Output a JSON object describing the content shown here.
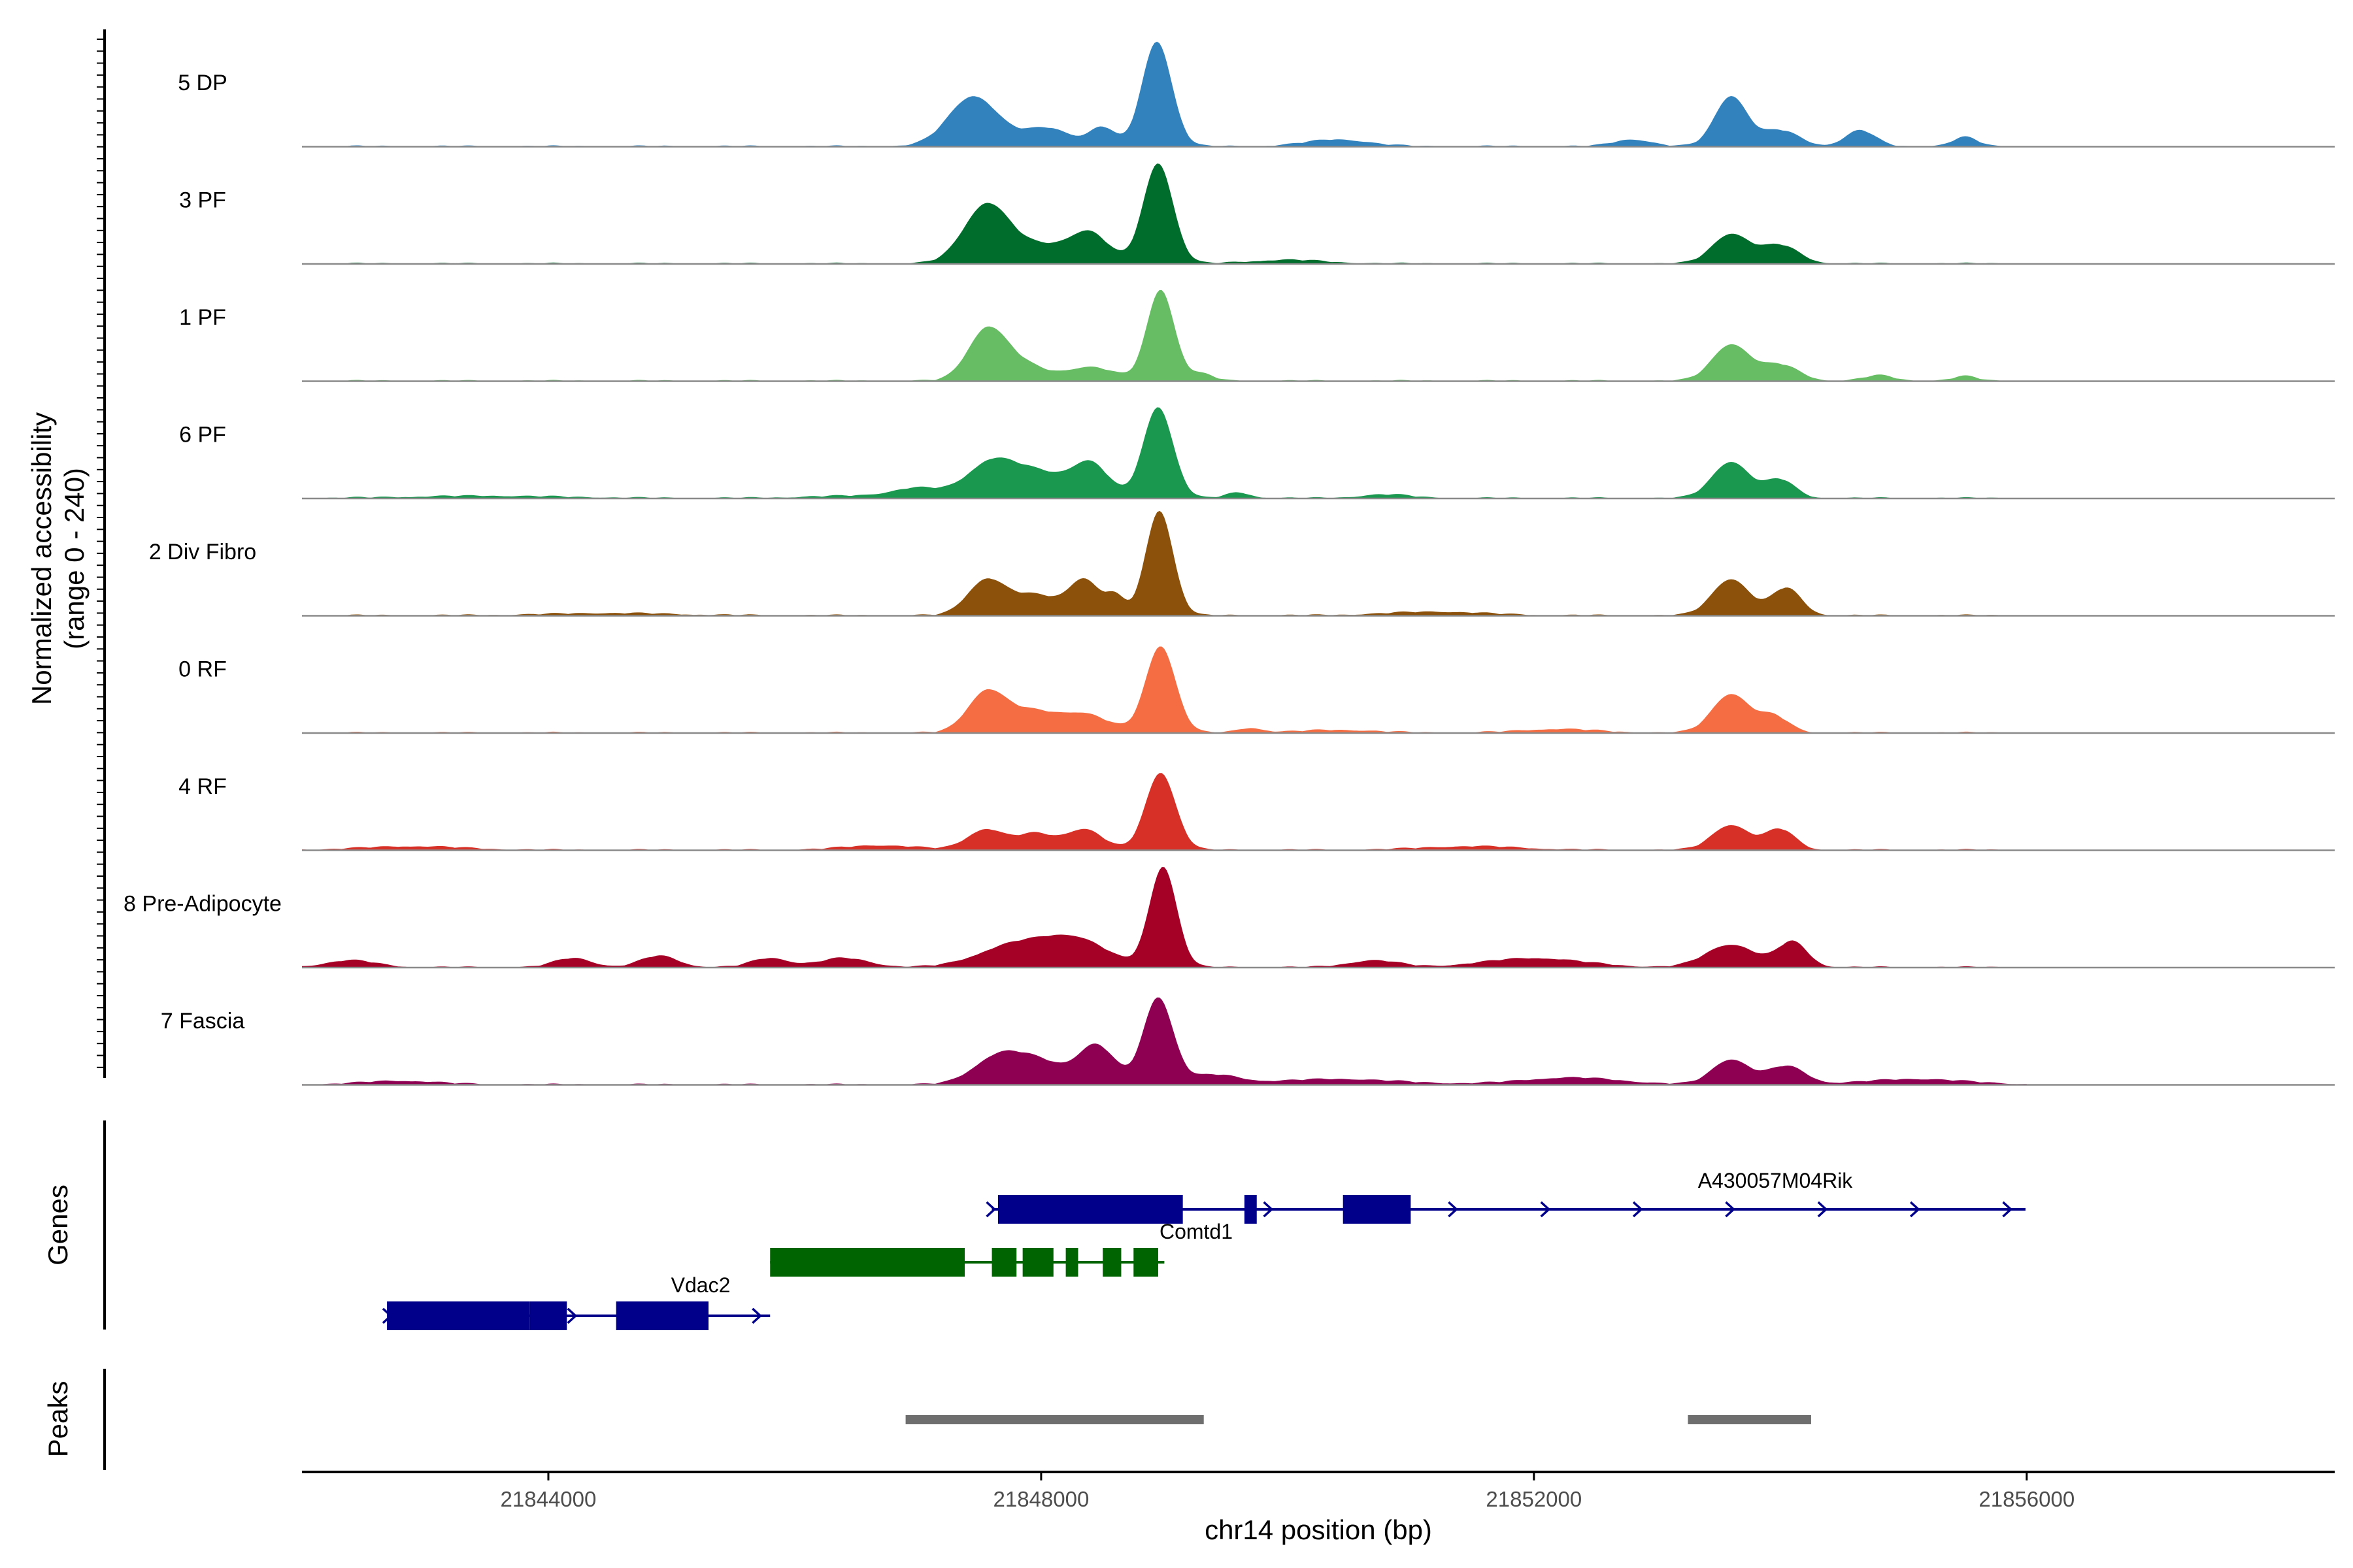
{
  "chart_data": {
    "type": "area",
    "y_axis": {
      "title_line1": "Normalized accessibility",
      "title_line2": "(range 0 - 240)",
      "range": [
        0,
        240
      ]
    },
    "x_axis": {
      "title": "chr14 position (bp)",
      "range": [
        21842000,
        21858500
      ],
      "ticks": [
        21844000,
        21848000,
        21852000,
        21856000
      ],
      "tick_labels": [
        "21844000",
        "21848000",
        "21852000",
        "21856000"
      ]
    },
    "tracks": [
      {
        "name": "5 DP",
        "color": "#3182bd"
      },
      {
        "name": "3 PF",
        "color": "#006d2c"
      },
      {
        "name": "1 PF",
        "color": "#66bd63"
      },
      {
        "name": "6 PF",
        "color": "#1a9850"
      },
      {
        "name": "2 Div Fibro",
        "color": "#8c510a"
      },
      {
        "name": "0 RF",
        "color": "#f46d43"
      },
      {
        "name": "4 RF",
        "color": "#d73027"
      },
      {
        "name": "8 Pre-Adipocyte",
        "color": "#a50026"
      },
      {
        "name": "7 Fascia",
        "color": "#8e0152"
      }
    ],
    "peak_profiles": [
      {
        "track": "5 DP",
        "peaks": [
          [
            21847450,
            200,
            110
          ],
          [
            21848050,
            200,
            40
          ],
          [
            21848500,
            100,
            40
          ],
          [
            21848940,
            120,
            230
          ],
          [
            21850400,
            250,
            15
          ],
          [
            21852800,
            150,
            15
          ],
          [
            21853600,
            130,
            110
          ],
          [
            21854000,
            150,
            35
          ],
          [
            21854650,
            120,
            35
          ],
          [
            21855500,
            100,
            20
          ]
        ]
      },
      {
        "track": "3 PF",
        "peaks": [
          [
            21847550,
            180,
            120
          ],
          [
            21848000,
            300,
            40
          ],
          [
            21848400,
            150,
            55
          ],
          [
            21848950,
            120,
            220
          ],
          [
            21850000,
            300,
            8
          ],
          [
            21853600,
            150,
            65
          ],
          [
            21854000,
            150,
            40
          ]
        ]
      },
      {
        "track": "1 PF",
        "peaks": [
          [
            21847550,
            150,
            100
          ],
          [
            21847800,
            200,
            40
          ],
          [
            21848400,
            200,
            30
          ],
          [
            21848970,
            110,
            200
          ],
          [
            21849300,
            100,
            15
          ],
          [
            21853600,
            150,
            80
          ],
          [
            21854000,
            150,
            35
          ],
          [
            21854800,
            120,
            12
          ],
          [
            21855500,
            100,
            10
          ]
        ]
      },
      {
        "track": "6 PF",
        "peaks": [
          [
            21847000,
            200,
            20
          ],
          [
            21847600,
            200,
            80
          ],
          [
            21848000,
            200,
            50
          ],
          [
            21848400,
            150,
            75
          ],
          [
            21848950,
            120,
            200
          ],
          [
            21849600,
            100,
            12
          ],
          [
            21850800,
            200,
            8
          ],
          [
            21853600,
            150,
            80
          ],
          [
            21854000,
            120,
            40
          ],
          [
            21846500,
            400,
            5
          ],
          [
            21843500,
            600,
            5
          ]
        ]
      },
      {
        "track": "2 Div Fibro",
        "peaks": [
          [
            21847550,
            150,
            75
          ],
          [
            21847950,
            200,
            45
          ],
          [
            21848350,
            120,
            75
          ],
          [
            21848600,
            80,
            40
          ],
          [
            21848960,
            110,
            230
          ],
          [
            21853600,
            150,
            80
          ],
          [
            21854050,
            120,
            60
          ],
          [
            21851200,
            400,
            8
          ],
          [
            21844500,
            500,
            5
          ]
        ]
      },
      {
        "track": "0 RF",
        "peaks": [
          [
            21847550,
            150,
            85
          ],
          [
            21847900,
            200,
            45
          ],
          [
            21848350,
            200,
            40
          ],
          [
            21848970,
            120,
            190
          ],
          [
            21849700,
            100,
            10
          ],
          [
            21853600,
            150,
            85
          ],
          [
            21853950,
            120,
            35
          ],
          [
            21852200,
            300,
            8
          ],
          [
            21850400,
            300,
            6
          ]
        ]
      },
      {
        "track": "4 RF",
        "peaks": [
          [
            21847550,
            150,
            45
          ],
          [
            21847950,
            150,
            35
          ],
          [
            21848350,
            150,
            45
          ],
          [
            21848970,
            120,
            170
          ],
          [
            21853600,
            150,
            55
          ],
          [
            21854000,
            120,
            45
          ],
          [
            21846700,
            300,
            10
          ],
          [
            21851500,
            400,
            8
          ],
          [
            21842900,
            400,
            8
          ]
        ]
      },
      {
        "track": "8 Pre-Adipocyte",
        "peaks": [
          [
            21847800,
            300,
            50
          ],
          [
            21848300,
            250,
            55
          ],
          [
            21848990,
            110,
            220
          ],
          [
            21853600,
            200,
            50
          ],
          [
            21854100,
            120,
            55
          ],
          [
            21844200,
            150,
            20
          ],
          [
            21844900,
            150,
            25
          ],
          [
            21845800,
            150,
            20
          ],
          [
            21846400,
            200,
            20
          ],
          [
            21850700,
            200,
            15
          ],
          [
            21852000,
            400,
            20
          ],
          [
            21842400,
            200,
            15
          ]
        ]
      },
      {
        "track": "7 Fascia",
        "peaks": [
          [
            21847650,
            200,
            60
          ],
          [
            21848000,
            200,
            45
          ],
          [
            21848450,
            150,
            85
          ],
          [
            21848950,
            120,
            190
          ],
          [
            21849400,
            200,
            20
          ],
          [
            21853600,
            150,
            55
          ],
          [
            21854050,
            150,
            40
          ],
          [
            21852300,
            400,
            15
          ],
          [
            21850400,
            500,
            12
          ],
          [
            21842800,
            300,
            8
          ],
          [
            21855100,
            400,
            12
          ]
        ]
      }
    ],
    "genes": [
      {
        "name": "A430057M04Rik",
        "strand": "+",
        "color": "#00008b",
        "start": 21847600,
        "end": 21855990,
        "exons": [
          [
            21847650,
            21849150
          ],
          [
            21849650,
            21849750
          ],
          [
            21850450,
            21851000
          ]
        ]
      },
      {
        "name": "Comtd1",
        "strand": "-",
        "color": "#006400",
        "start": 21845800,
        "end": 21849000,
        "exons": [
          [
            21845800,
            21847380
          ],
          [
            21847600,
            21847800
          ],
          [
            21847850,
            21848100
          ],
          [
            21848200,
            21848300
          ],
          [
            21848500,
            21848650
          ],
          [
            21848750,
            21848950
          ]
        ]
      },
      {
        "name": "Vdac2",
        "strand": "+",
        "color": "#00008b",
        "start": 21842700,
        "end": 21845800,
        "exons": [
          [
            21844150,
            21843850
          ],
          [
            21842690,
            21843850
          ],
          [
            21844550,
            21845300
          ]
        ]
      }
    ],
    "peaks": [
      {
        "start": 21846900,
        "end": 21849320
      },
      {
        "start": 21853250,
        "end": 21854250
      }
    ],
    "panel_labels": {
      "genes": "Genes",
      "peaks": "Peaks"
    }
  }
}
